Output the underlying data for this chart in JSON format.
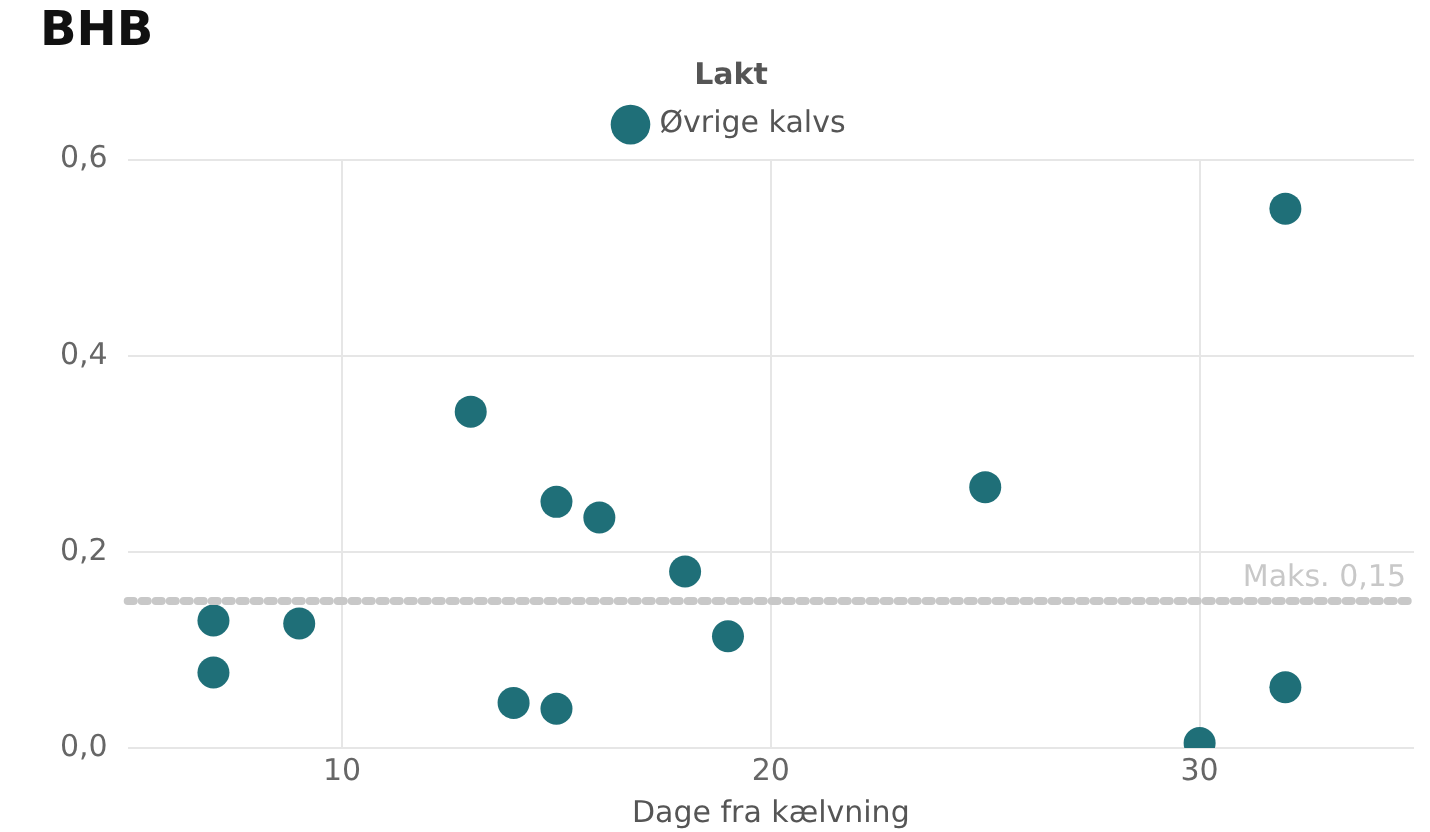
{
  "chart_data": {
    "type": "scatter",
    "title": "BHB",
    "legend_title": "Lakt",
    "xlabel": "Dage fra kælvning",
    "series": [
      {
        "name": "Øvrige kalvs",
        "color": "#1f6f78",
        "x": [
          7,
          7,
          9,
          13,
          14,
          15,
          15,
          16,
          18,
          19,
          25,
          30,
          32,
          32
        ],
        "values": [
          0.13,
          0.077,
          0.127,
          0.343,
          0.046,
          0.251,
          0.04,
          0.235,
          0.18,
          0.114,
          0.266,
          0.005,
          0.55,
          0.062
        ]
      }
    ],
    "xlim": [
      5,
      35
    ],
    "xticks": [
      10,
      20,
      30
    ],
    "ylim": [
      0,
      0.6
    ],
    "yticks": [
      {
        "value": 0,
        "label": "0,0"
      },
      {
        "value": 0.2,
        "label": "0,2"
      },
      {
        "value": 0.4,
        "label": "0,4"
      },
      {
        "value": 0.6,
        "label": "0,6"
      }
    ],
    "ref_lines": [
      {
        "axis": "y",
        "value": 0.15,
        "label": "Maks. 0,15",
        "color": "#c8c8c8",
        "line_style": "dotted"
      }
    ],
    "grid": true,
    "legend": "top",
    "marker": "circle"
  }
}
